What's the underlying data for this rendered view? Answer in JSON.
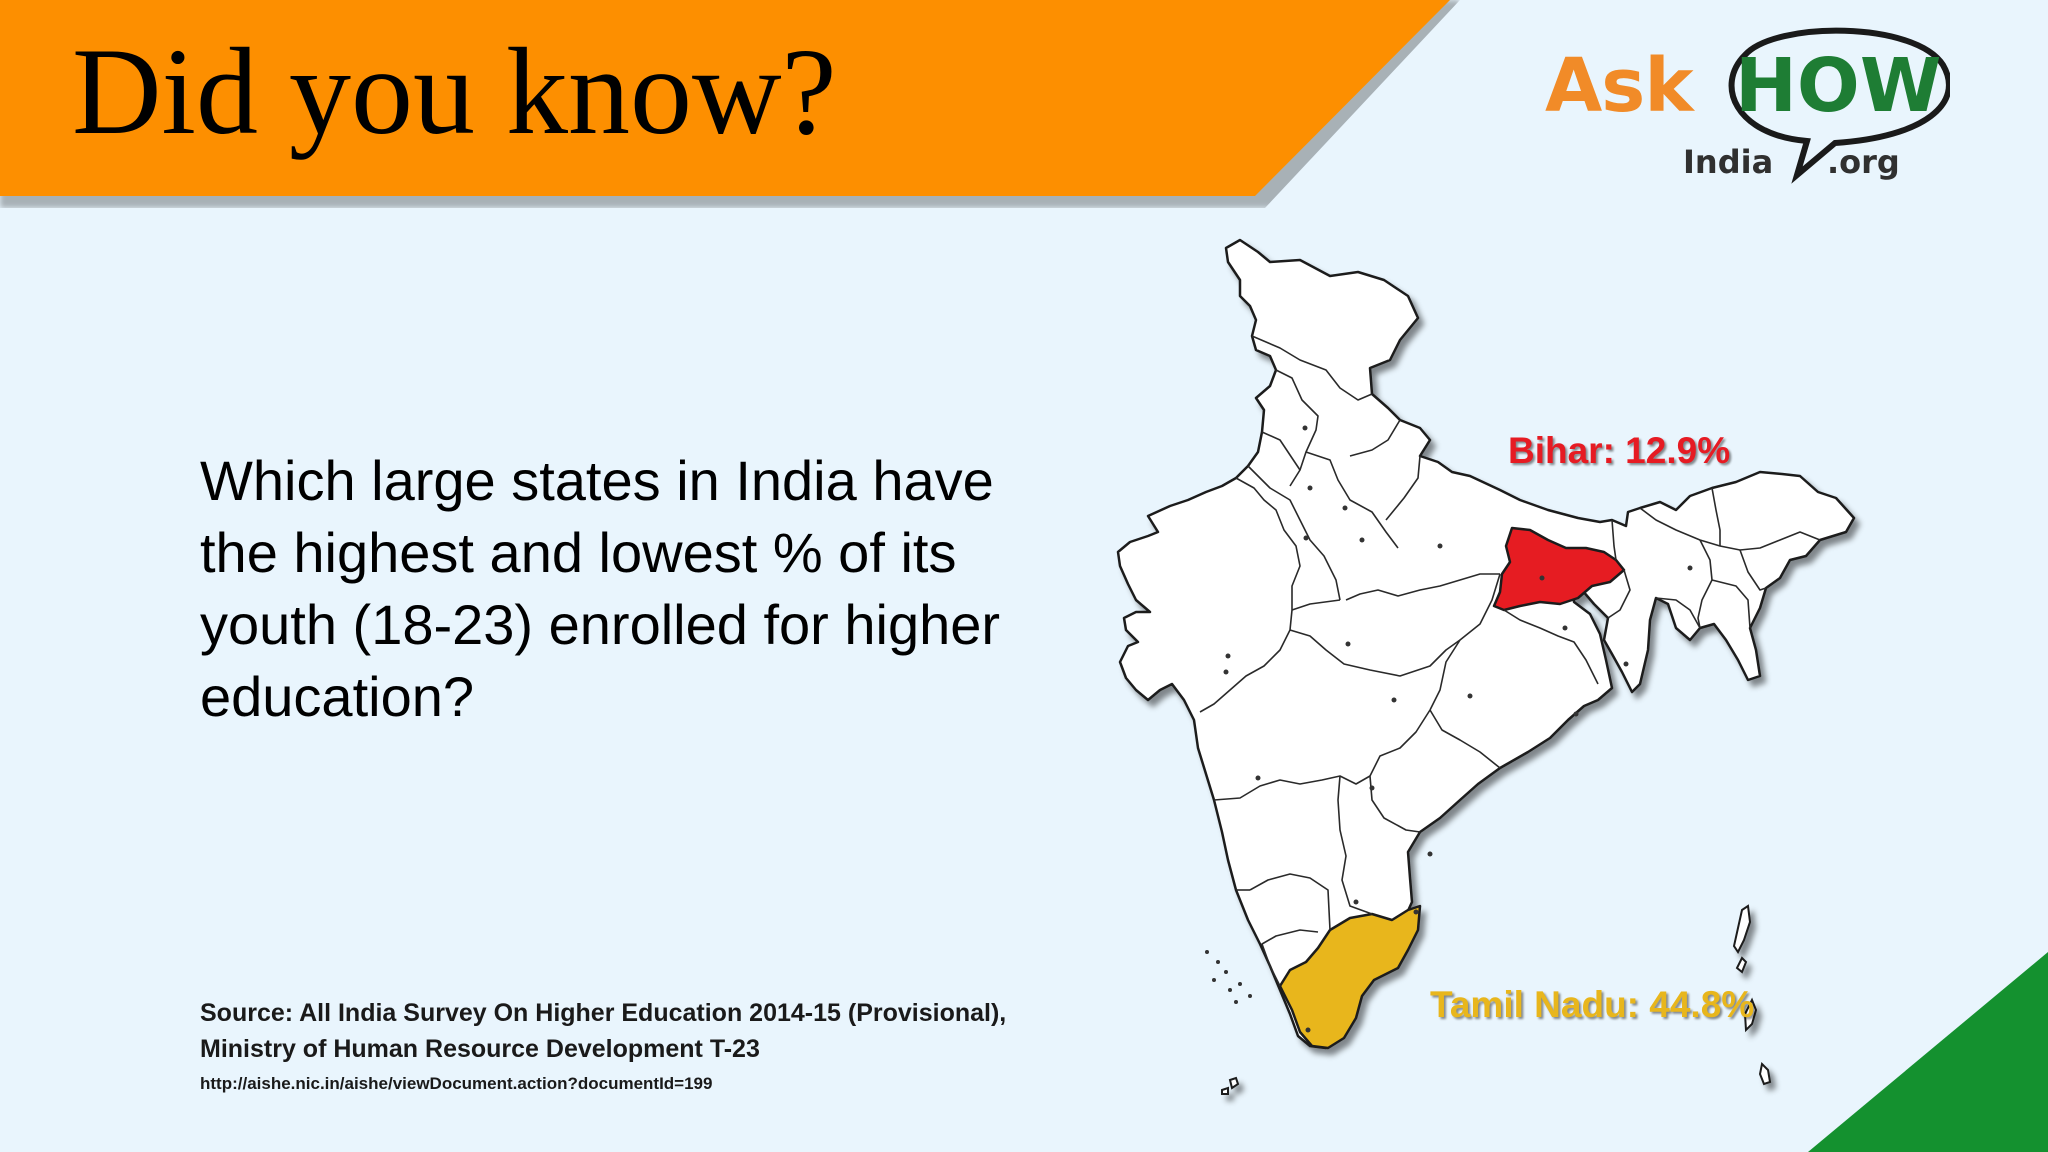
{
  "banner": {
    "title": "Did you know?"
  },
  "logo": {
    "ask": "Ask",
    "how": "HOW",
    "india": "India",
    "org": ".org"
  },
  "question": "Which large states in India have the highest and lowest % of its youth (18-23) enrolled for higher education?",
  "source": {
    "text": "Source: All India Survey On Higher Education 2014-15 (Provisional), Ministry of Human Resource Development T-23",
    "url": "http://aishe.nic.in/aishe/viewDocument.action?documentId=199"
  },
  "map": {
    "highlighted_states": [
      {
        "state": "Bihar",
        "label": "Bihar: 12.9%",
        "value_percent": 12.9,
        "color": "#e61b23",
        "rank": "lowest"
      },
      {
        "state": "Tamil Nadu",
        "label": "Tamil Nadu: 44.8%",
        "value_percent": 44.8,
        "color": "#e8b61c",
        "rank": "highest"
      }
    ],
    "base_fill": "#ffffff",
    "border_color": "#222222"
  },
  "colors": {
    "background": "#e9f5fd",
    "banner": "#fd8f00",
    "corner_accent": "#14912f",
    "logo_orange": "#f18b28",
    "logo_green": "#1e7d34"
  }
}
